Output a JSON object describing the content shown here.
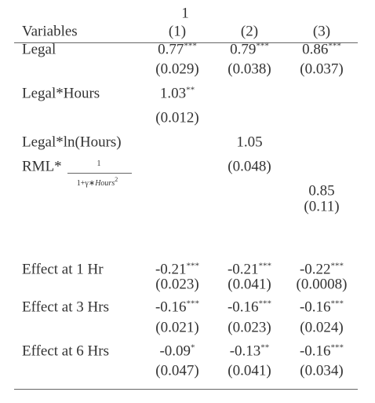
{
  "header": {
    "stray": "1",
    "variables": "Variables",
    "columns": [
      "(1)",
      "(2)",
      "(3)"
    ]
  },
  "rows": [
    {
      "label": "Legal",
      "cells": [
        {
          "coef": "0.77",
          "stars": "***",
          "se": "(0.029)"
        },
        {
          "coef": "0.79",
          "stars": "***",
          "se": "(0.038)"
        },
        {
          "coef": "0.86",
          "stars": "***",
          "se": "(0.037)"
        }
      ]
    },
    {
      "label": "Legal*Hours",
      "cells": [
        {
          "coef": "1.03",
          "stars": "**",
          "se": "(0.012)"
        },
        null,
        null
      ]
    },
    {
      "label": "Legal*ln(Hours)",
      "cells": [
        null,
        {
          "coef": "1.05",
          "se": "(0.048)"
        },
        null
      ]
    },
    {
      "label": "RML*",
      "fraction": {
        "numerator": "1",
        "denominator": "1+γ∗",
        "denominator_italic": "Hours",
        "exponent": "2"
      },
      "cells": [
        null,
        null,
        {
          "coef": "0.85",
          "se": "(0.11)"
        }
      ]
    },
    {
      "label": "Effect at 1 Hr",
      "cells": [
        {
          "coef": "-0.21",
          "stars": "***",
          "se": "(0.023)"
        },
        {
          "coef": "-0.21",
          "stars": "***",
          "se": "(0.041)"
        },
        {
          "coef": "-0.22",
          "stars": "***",
          "se": "(0.0008)"
        }
      ]
    },
    {
      "label": "Effect at 3 Hrs",
      "cells": [
        {
          "coef": "-0.16",
          "stars": "***",
          "se": "(0.021)"
        },
        {
          "coef": "-0.16",
          "stars": "***",
          "se": "(0.023)"
        },
        {
          "coef": "-0.16",
          "stars": "***",
          "se": "(0.024)"
        }
      ]
    },
    {
      "label": "Effect at 6 Hrs",
      "cells": [
        {
          "coef": "-0.09",
          "stars": "*",
          "se": "(0.047)"
        },
        {
          "coef": "-0.13",
          "stars": "**",
          "se": "(0.041)"
        },
        {
          "coef": "-0.16",
          "stars": "***",
          "se": "(0.034)"
        }
      ]
    }
  ]
}
